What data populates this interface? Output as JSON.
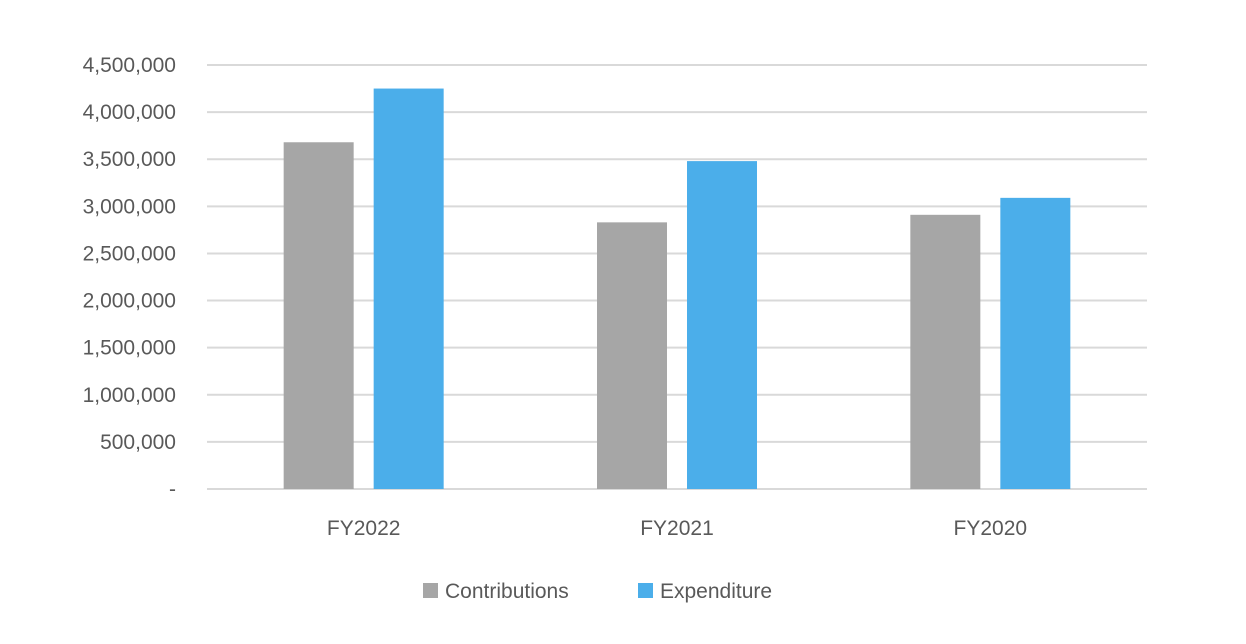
{
  "chart_data": {
    "type": "bar",
    "categories": [
      "FY2022",
      "FY2021",
      "FY2020"
    ],
    "series": [
      {
        "name": "Contributions",
        "color": "#a6a6a6",
        "values": [
          3680000,
          2830000,
          2910000
        ]
      },
      {
        "name": "Expenditure",
        "color": "#4baeea",
        "values": [
          4250000,
          3480000,
          3090000
        ]
      }
    ],
    "ylim": [
      0,
      4500000
    ],
    "yticks": [
      {
        "value": 0,
        "label": "-"
      },
      {
        "value": 500000,
        "label": "500,000"
      },
      {
        "value": 1000000,
        "label": "1,000,000"
      },
      {
        "value": 1500000,
        "label": "1,500,000"
      },
      {
        "value": 2000000,
        "label": "2,000,000"
      },
      {
        "value": 2500000,
        "label": "2,500,000"
      },
      {
        "value": 3000000,
        "label": "3,000,000"
      },
      {
        "value": 3500000,
        "label": "3,500,000"
      },
      {
        "value": 4000000,
        "label": "4,000,000"
      },
      {
        "value": 4500000,
        "label": "4,500,000"
      }
    ],
    "grid": true,
    "gridColor": "#d9d9d9",
    "legend": "bottom",
    "title": "",
    "xlabel": "",
    "ylabel": ""
  }
}
